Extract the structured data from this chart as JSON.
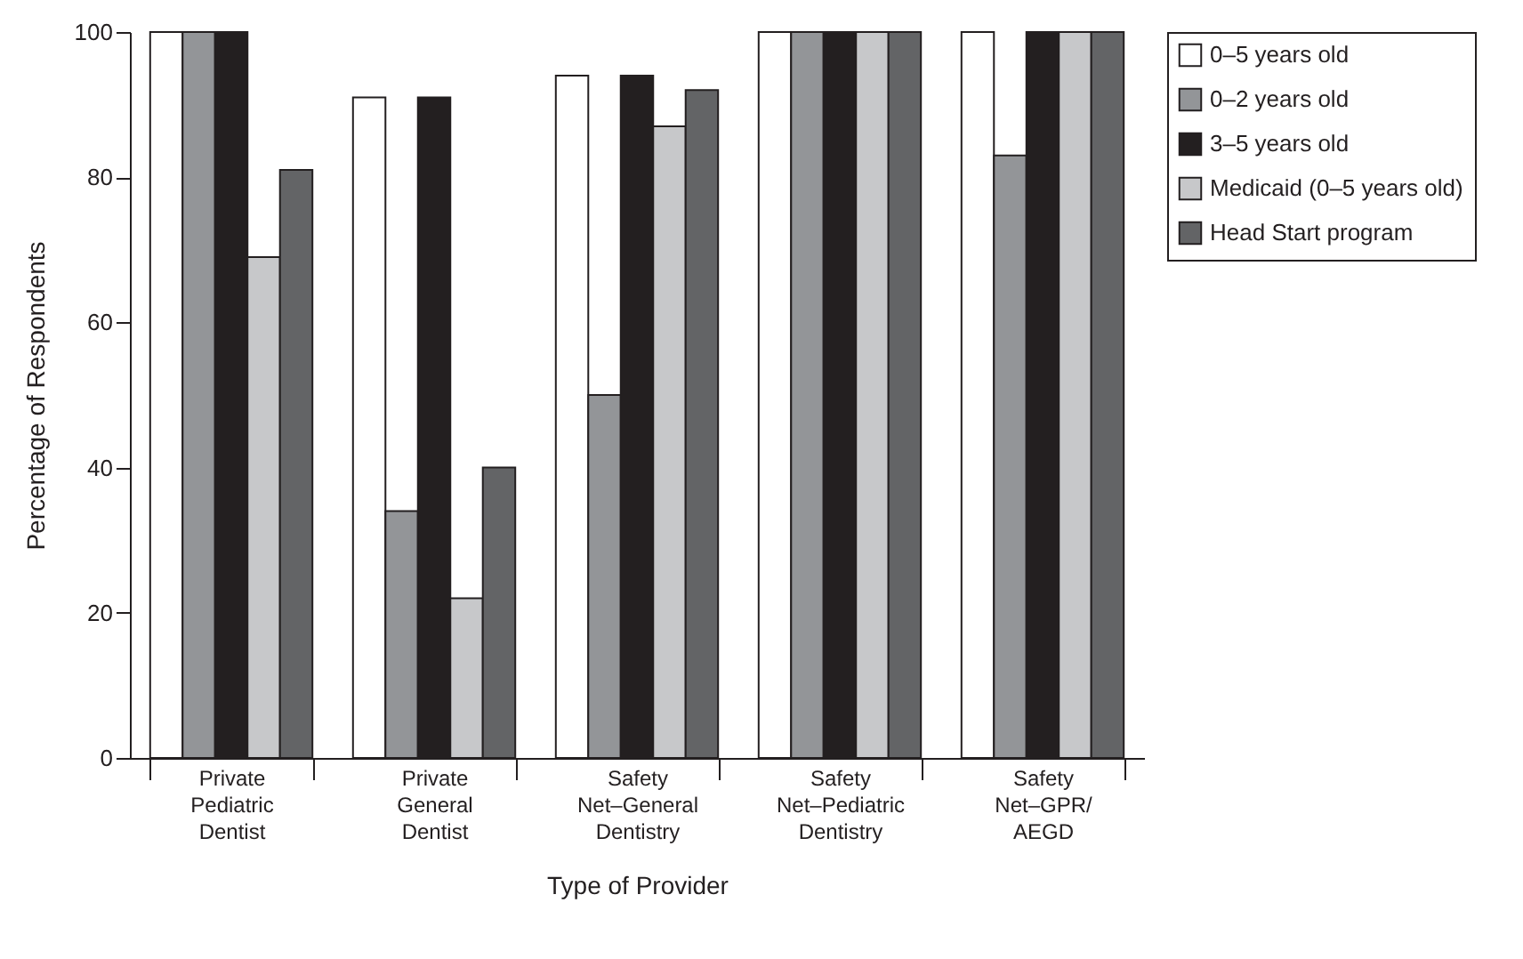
{
  "chart_data": {
    "type": "bar",
    "xlabel": "Type of Provider",
    "ylabel": "Percentage of Respondents",
    "categories": [
      "Private Pediatric Dentist",
      "Private General Dentist",
      "Safety Net–General Dentistry",
      "Safety Net–Pediatric Dentistry",
      "Safety Net–GPR/ AEGD"
    ],
    "series": [
      {
        "name": "0–5 years old",
        "color": "#ffffff",
        "values": [
          100,
          91,
          94,
          100,
          100
        ]
      },
      {
        "name": "0–2 years old",
        "color": "#939598",
        "values": [
          100,
          34,
          50,
          100,
          83
        ]
      },
      {
        "name": "3–5 years old",
        "color": "#231f20",
        "values": [
          100,
          91,
          94,
          100,
          100
        ]
      },
      {
        "name": "Medicaid (0–5 years old)",
        "color": "#c7c8ca",
        "values": [
          69,
          22,
          87,
          100,
          100
        ]
      },
      {
        "name": "Head Start program",
        "color": "#636466",
        "values": [
          81,
          40,
          92,
          100,
          100
        ]
      }
    ],
    "ylim": [
      0,
      100
    ],
    "yticks": [
      0,
      20,
      40,
      60,
      80,
      100
    ],
    "grid": false,
    "legend": "right"
  }
}
